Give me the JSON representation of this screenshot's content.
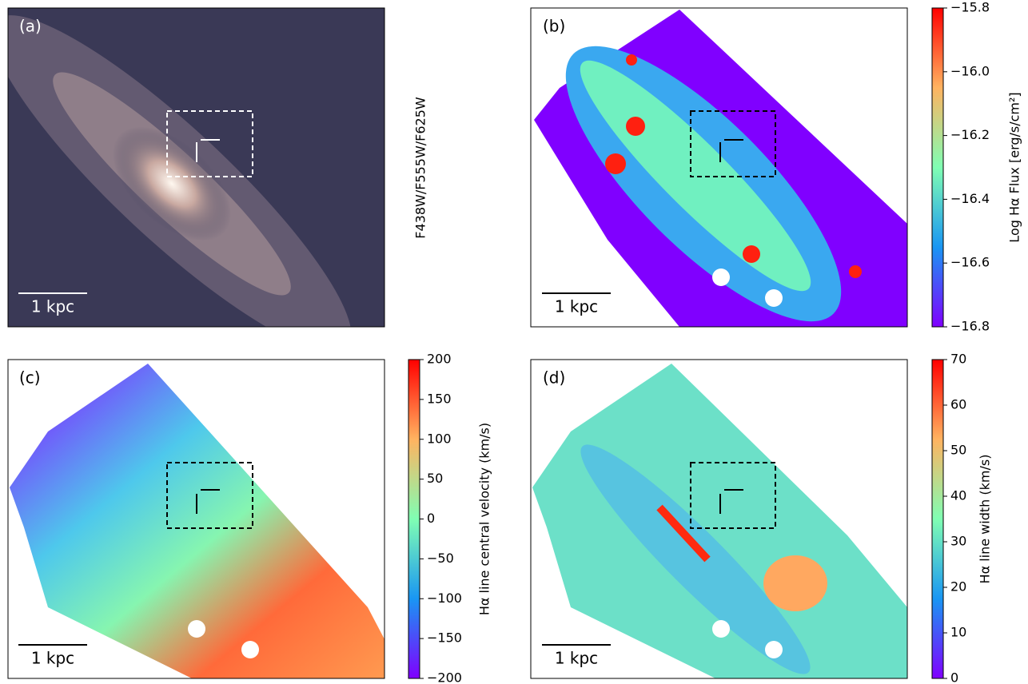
{
  "panels": [
    {
      "label": "(a)",
      "scale_bar": "1 kpc",
      "side_label": "F438W/F555W/F625W"
    },
    {
      "label": "(b)",
      "scale_bar": "1 kpc",
      "colorbar": {
        "label": "Log Hα Flux [erg/s/cm²]",
        "lim": [
          -16.8,
          -15.8
        ],
        "ticks": [
          {
            "value": -16.8,
            "label": "−16.8"
          },
          {
            "value": -16.6,
            "label": "−16.6"
          },
          {
            "value": -16.4,
            "label": "−16.4"
          },
          {
            "value": -16.2,
            "label": "−16.2"
          },
          {
            "value": -16.0,
            "label": "−16.0"
          },
          {
            "value": -15.8,
            "label": "−15.8"
          }
        ]
      }
    },
    {
      "label": "(c)",
      "scale_bar": "1 kpc",
      "colorbar": {
        "label": "Hα line central velocity (km/s)",
        "lim": [
          -200,
          200
        ],
        "ticks": [
          {
            "value": -200,
            "label": "−200"
          },
          {
            "value": -150,
            "label": "−150"
          },
          {
            "value": -100,
            "label": "−100"
          },
          {
            "value": -50,
            "label": "−50"
          },
          0,
          50,
          100,
          150,
          200
        ]
      }
    },
    {
      "label": "(d)",
      "scale_bar": "1 kpc",
      "colorbar": {
        "label": "Hα line width (km/s)",
        "lim": [
          0,
          70
        ],
        "ticks": [
          0,
          10,
          20,
          30,
          40,
          50,
          60,
          70
        ]
      }
    }
  ]
}
